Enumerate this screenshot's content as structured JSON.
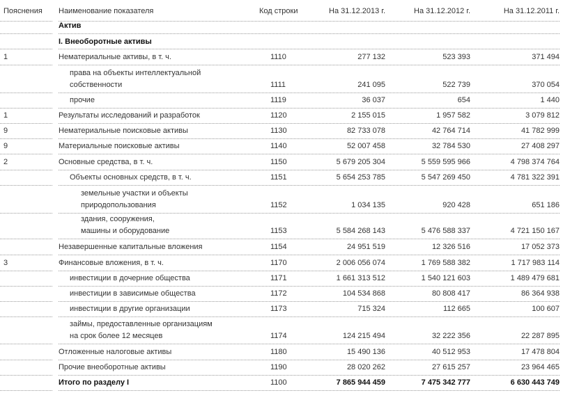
{
  "header": {
    "note": "Пояснения",
    "name": "Наименование показателя",
    "code": "Код строки",
    "values": [
      "На 31.12.2013 г.",
      "На 31.12.2012 г.",
      "На 31.12.2011 г."
    ]
  },
  "sections": [
    "Актив",
    "I. Внеоборотные активы"
  ],
  "rows": [
    {
      "note": "1",
      "name": [
        "Нематериальные активы, в т. ч."
      ],
      "code": "1110",
      "values": [
        "277 132",
        "523 393",
        "371 494"
      ]
    },
    {
      "note": null,
      "name": [
        "права на объекты интеллектуальной",
        "собственности"
      ],
      "code": "1111",
      "values": [
        "241 095",
        "522 739",
        "370 054"
      ]
    },
    {
      "note": null,
      "name": [
        "прочие"
      ],
      "code": "1119",
      "values": [
        "36 037",
        "654",
        "1 440"
      ]
    },
    {
      "note": "1",
      "name": [
        "Результаты исследований и разработок"
      ],
      "code": "1120",
      "values": [
        "2 155 015",
        "1 957 582",
        "3 079 812"
      ]
    },
    {
      "note": "9",
      "name": [
        "Нематериальные поисковые активы"
      ],
      "code": "1130",
      "values": [
        "82 733 078",
        "42 764 714",
        "41 782 999"
      ]
    },
    {
      "note": "9",
      "name": [
        "Материальные поисковые активы"
      ],
      "code": "1140",
      "values": [
        "52 007 458",
        "32 784 530",
        "27 408 297"
      ]
    },
    {
      "note": "2",
      "name": [
        "Основные средства, в т. ч."
      ],
      "code": "1150",
      "values": [
        "5 679 205 304",
        "5 559 595 966",
        "4 798 374 764"
      ]
    },
    {
      "note": null,
      "name": [
        "Объекты основных средств, в т. ч."
      ],
      "code": "1151",
      "values": [
        "5 654 253 785",
        "5 547 269 450",
        "4 781 322 391"
      ]
    },
    {
      "note": null,
      "name": [
        "земельные участки и объекты",
        "природопользования"
      ],
      "code": "1152",
      "values": [
        "1 034 135",
        "920 428",
        "651 186"
      ]
    },
    {
      "note": null,
      "name": [
        "здания, сооружения,",
        "машины и оборудование"
      ],
      "code": "1153",
      "values": [
        "5 584 268 143",
        "5 476 588 337",
        "4 721 150 167"
      ]
    },
    {
      "note": null,
      "name": [
        "Незавершенные капитальные вложения"
      ],
      "code": "1154",
      "values": [
        "24 951 519",
        "12 326 516",
        "17 052 373"
      ]
    },
    {
      "note": "3",
      "name": [
        "Финансовые вложения, в т. ч."
      ],
      "code": "1170",
      "values": [
        "2 006 056 074",
        "1 769 588 382",
        "1 717 983 114"
      ]
    },
    {
      "note": null,
      "name": [
        "инвестиции в дочерние общества"
      ],
      "code": "1171",
      "values": [
        "1 661 313 512",
        "1 540 121 603",
        "1 489 479 681"
      ]
    },
    {
      "note": null,
      "name": [
        "инвестиции в зависимые общества"
      ],
      "code": "1172",
      "values": [
        "104 534 868",
        "80 808 417",
        "86 364 938"
      ]
    },
    {
      "note": null,
      "name": [
        "инвестиции в другие организации"
      ],
      "code": "1173",
      "values": [
        "715 324",
        "112 665",
        "100 607"
      ]
    },
    {
      "note": null,
      "name": [
        "займы, предоставленные организациям",
        "на срок более 12 месяцев"
      ],
      "code": "1174",
      "values": [
        "124 215 494",
        "32 222 356",
        "22 287 895"
      ]
    },
    {
      "note": null,
      "name": [
        "Отложенные налоговые активы"
      ],
      "code": "1180",
      "values": [
        "15 490 136",
        "40 512 953",
        "17 478 804"
      ]
    },
    {
      "note": null,
      "name": [
        "Прочие внеоборотные активы"
      ],
      "code": "1190",
      "values": [
        "28 020 262",
        "27 615 257",
        "23 964 465"
      ]
    },
    {
      "note": null,
      "name": [
        "Итого по разделу I"
      ],
      "code": "1100",
      "values": [
        "7 865 944 459",
        "7 475 342 777",
        "6 630 443 749"
      ]
    }
  ]
}
